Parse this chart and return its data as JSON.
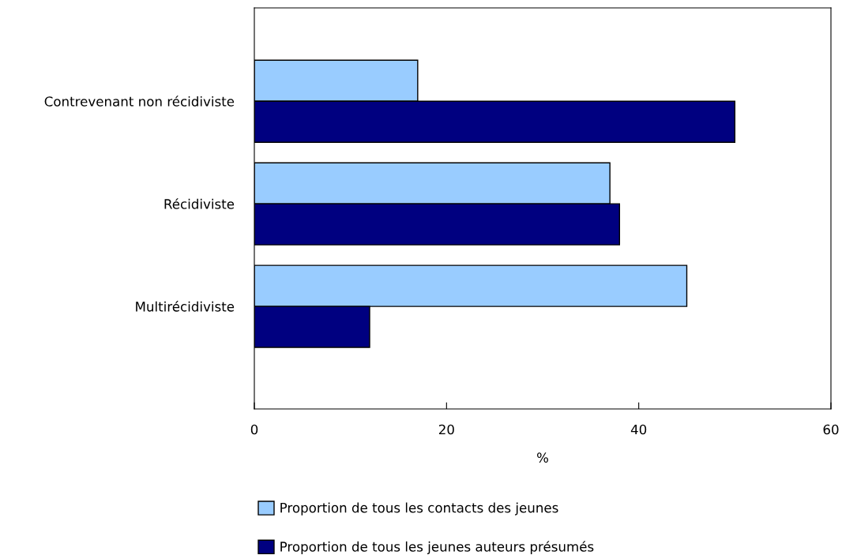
{
  "chart_data": {
    "type": "bar",
    "orientation": "horizontal",
    "xlabel": "%",
    "categories": [
      "Contrevenant non récidiviste",
      "Récidiviste",
      "Multirécidiviste"
    ],
    "series": [
      {
        "name": "Proportion de tous les contacts des jeunes",
        "color": "#99ccff",
        "values": [
          17,
          37,
          45
        ]
      },
      {
        "name": "Proportion de tous les jeunes auteurs présumés",
        "color": "#000080",
        "values": [
          50,
          38,
          12
        ]
      }
    ],
    "xlim": [
      0,
      60
    ],
    "xticks": [
      0,
      20,
      40,
      60
    ],
    "grid": false,
    "legend": "bottom"
  }
}
